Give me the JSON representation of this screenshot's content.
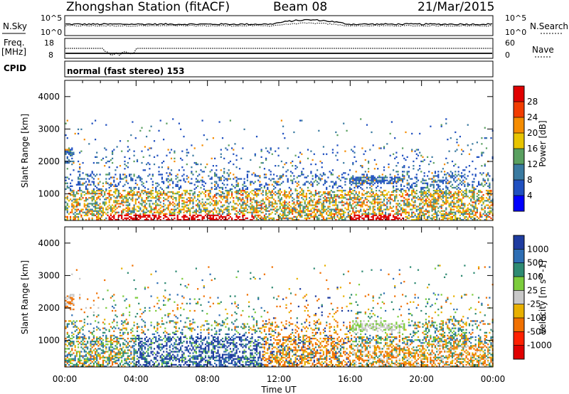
{
  "header": {
    "title": "Zhongshan Station (fitACF)",
    "beam": "Beam 08",
    "date": "21/Mar/2015"
  },
  "noise_panel": {
    "left_label": "N.Sky",
    "left_ticks": [
      "10^5",
      "10^0"
    ],
    "right_ticks": [
      "10^5",
      "10^0"
    ],
    "right_label": "N.Search"
  },
  "freq_panel": {
    "left_label_1": "Freq.",
    "left_label_2": "[MHz]",
    "left_ticks": [
      "18",
      "8"
    ],
    "right_ticks": [
      "60",
      "0"
    ],
    "right_label": "Nave"
  },
  "cpid": {
    "label": "CPID",
    "text": "normal (fast stereo) 153"
  },
  "chart_data": [
    {
      "type": "heatmap",
      "quantity": "Power",
      "ylabel": "Slant Range [km]",
      "ylim": [
        180,
        4500
      ],
      "yticks": [
        1000,
        2000,
        3000,
        4000
      ],
      "xlim": [
        0,
        24
      ],
      "xticks": [
        "00:00",
        "04:00",
        "08:00",
        "12:00",
        "16:00",
        "20:00",
        "00:00"
      ],
      "colorbar": {
        "label": "Power [dB]",
        "ticks": [
          "28",
          "24",
          "20",
          "16",
          "12",
          "8",
          "4"
        ],
        "colors": [
          "#e00000",
          "#f23c00",
          "#f58c00",
          "#e8c400",
          "#5aa060",
          "#3a7aa0",
          "#2050c0",
          "#0000ff"
        ]
      }
    },
    {
      "type": "heatmap",
      "quantity": "Velocity",
      "ylabel": "Slant Range [km]",
      "ylim": [
        180,
        4500
      ],
      "yticks": [
        1000,
        2000,
        3000,
        4000
      ],
      "xlim": [
        0,
        24
      ],
      "xticks": [
        "00:00",
        "04:00",
        "08:00",
        "12:00",
        "16:00",
        "20:00",
        "00:00"
      ],
      "xlabel": "Time UT",
      "colorbar": {
        "label": "Velocity [m s^-1]",
        "ticks": [
          "1000",
          "500",
          "100",
          "25",
          "-25",
          "-100",
          "-500",
          "-1000"
        ],
        "colors": [
          "#1e3ca0",
          "#2e6eb4",
          "#2e8a72",
          "#7ccc3c",
          "#c8c8c8",
          "#e8b000",
          "#f07000",
          "#ff2000",
          "#e00000"
        ]
      }
    }
  ]
}
